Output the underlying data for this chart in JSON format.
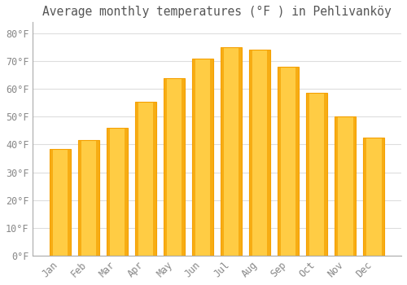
{
  "title": "Average monthly temperatures (°F ) in Pehlivanköy",
  "months": [
    "Jan",
    "Feb",
    "Mar",
    "Apr",
    "May",
    "Jun",
    "Jul",
    "Aug",
    "Sep",
    "Oct",
    "Nov",
    "Dec"
  ],
  "values": [
    38.5,
    41.5,
    46.0,
    55.5,
    64.0,
    71.0,
    75.0,
    74.0,
    68.0,
    58.5,
    50.0,
    42.5
  ],
  "bar_color_light": "#FFCC44",
  "bar_color_dark": "#F5A000",
  "background_color": "#FFFFFF",
  "ylim": [
    0,
    84
  ],
  "yticks": [
    0,
    10,
    20,
    30,
    40,
    50,
    60,
    70,
    80
  ],
  "ytick_labels": [
    "0°F",
    "10°F",
    "20°F",
    "30°F",
    "40°F",
    "50°F",
    "60°F",
    "70°F",
    "80°F"
  ],
  "grid_color": "#DDDDDD",
  "tick_label_color": "#888888",
  "title_color": "#555555",
  "title_fontsize": 10.5,
  "tick_fontsize": 8.5,
  "bar_width": 0.75,
  "figsize": [
    5.0,
    3.5
  ],
  "dpi": 100
}
